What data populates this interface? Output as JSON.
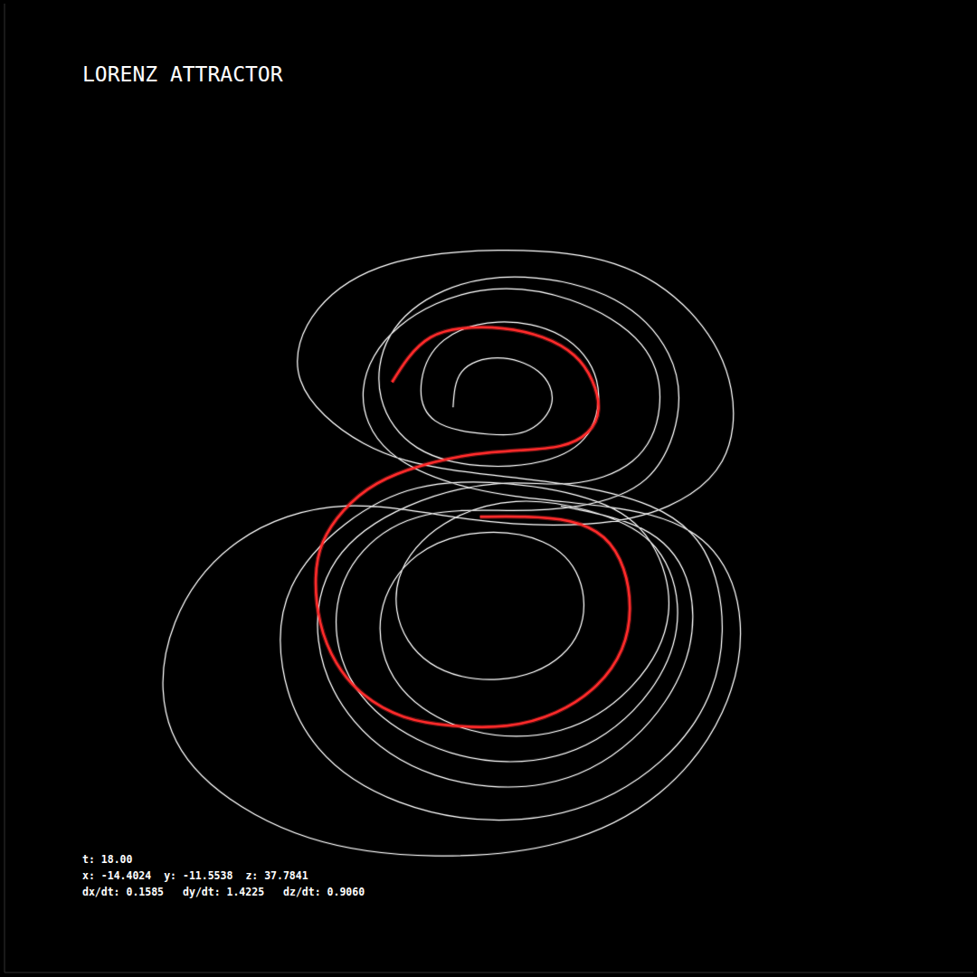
{
  "chart_data": {
    "type": "line",
    "title": "LORENZ ATTRACTOR",
    "tick_labels": false,
    "xlim": [
      0,
      1080
    ],
    "ylim": [
      0,
      1080
    ],
    "series": [
      {
        "color": "#ffffff",
        "x": [
          500,
          510,
          550,
          595,
          610,
          585,
          540,
          480,
          465,
          490,
          550,
          620,
          660,
          650,
          600,
          530,
          460,
          420,
          430,
          490,
          580,
          680,
          740,
          750,
          715,
          640,
          560,
          470,
          400,
          370,
          390,
          460,
          560,
          660,
          730,
          750,
          720,
          650,
          570,
          490,
          440,
          450,
          510,
          590,
          640,
          640,
          600,
          530,
          460,
          420,
          440,
          520,
          620,
          700,
          740,
          720,
          660,
          560,
          460,
          380,
          320,
          310,
          350,
          440,
          560,
          680,
          770,
          800,
          780,
          720,
          620,
          500,
          400,
          330,
          350,
          430,
          550,
          680,
          770,
          810,
          800,
          740,
          650,
          520,
          380,
          260,
          190,
          180,
          230,
          340,
          480,
          620,
          730,
          800,
          820,
          790,
          720,
          620,
          520,
          430,
          400,
          440,
          530,
          630,
          710,
          730,
          700,
          630,
          550,
          450,
          370,
          350,
          390,
          480,
          600,
          700,
          760,
          760,
          710,
          620
        ],
        "values": [
          630,
          670,
          685,
          670,
          635,
          605,
          600,
          615,
          660,
          705,
          725,
          710,
          660,
          600,
          570,
          565,
          585,
          640,
          710,
          760,
          775,
          750,
          690,
          620,
          550,
          520,
          515,
          510,
          470,
          400,
          320,
          260,
          235,
          260,
          330,
          410,
          480,
          515,
          525,
          500,
          440,
          370,
          330,
          335,
          380,
          440,
          480,
          490,
          465,
          400,
          320,
          270,
          270,
          320,
          400,
          480,
          525,
          545,
          540,
          500,
          430,
          340,
          250,
          190,
          170,
          200,
          280,
          380,
          470,
          520,
          545,
          560,
          590,
          660,
          740,
          790,
          805,
          790,
          730,
          650,
          570,
          520,
          500,
          505,
          520,
          480,
          390,
          290,
          210,
          150,
          130,
          145,
          200,
          290,
          390,
          470,
          510,
          525,
          540,
          580,
          650,
          720,
          760,
          750,
          700,
          630,
          570,
          545,
          545,
          520,
          460,
          370,
          280,
          220,
          210,
          260,
          350,
          440,
          495,
          520
        ]
      },
      {
        "color": "#ff2a2a",
        "x": [
          432,
          450,
          475,
          510,
          555,
          600,
          635,
          655,
          662,
          650,
          620,
          575,
          520,
          465,
          415,
          378,
          355,
          347,
          352,
          370,
          400,
          445,
          500,
          560,
          615,
          660,
          688,
          697,
          690,
          668,
          630,
          580,
          530
        ],
        "values": [
          658,
          685,
          708,
          718,
          718,
          708,
          688,
          660,
          628,
          602,
          587,
          582,
          577,
          565,
          545,
          515,
          480,
          440,
          390,
          345,
          310,
          285,
          275,
          275,
          290,
          320,
          360,
          405,
          450,
          485,
          503,
          508,
          508
        ]
      }
    ],
    "readouts": [
      [
        {
          "name": "t:",
          "value": 18,
          "label": "18.00"
        }
      ],
      [
        {
          "name": "x:",
          "value": -14.4024
        },
        {
          "name": "y:",
          "value": -11.5538
        },
        {
          "name": "z:",
          "value": 37.7841
        }
      ],
      [
        {
          "name": "dx/dt:",
          "value": 0.1585
        },
        {
          "name": "dy/dt:",
          "value": 1.4225
        },
        {
          "name": "dz/dt:",
          "value": 0.906,
          "label": "0.9060"
        }
      ]
    ]
  }
}
